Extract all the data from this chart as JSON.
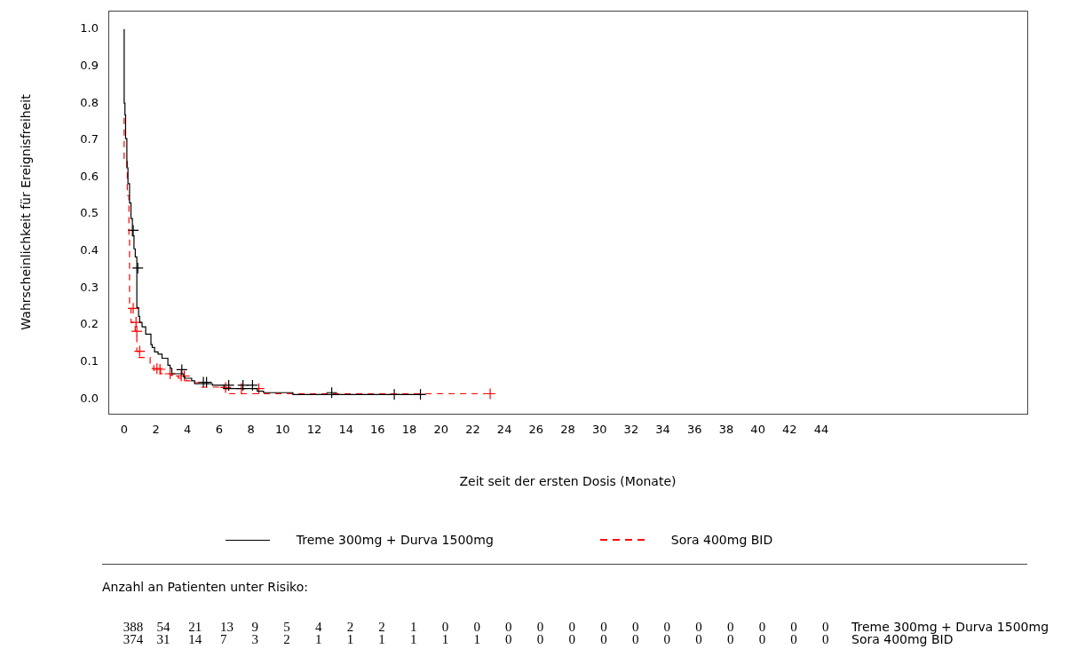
{
  "chart_data": {
    "type": "step",
    "xlabel": "Zeit seit der ersten Dosis (Monate)",
    "ylabel": "Wahrscheinlichkeit für Ereignisfreiheit",
    "xlim": [
      -1,
      57
    ],
    "xticks": [
      0,
      2,
      4,
      6,
      8,
      10,
      12,
      14,
      16,
      18,
      20,
      22,
      24,
      26,
      28,
      30,
      32,
      34,
      36,
      38,
      40,
      42,
      44
    ],
    "ylim": [
      -0.04,
      1.05
    ],
    "yticks": [
      {
        "value": 0,
        "label": "0.0"
      },
      {
        "value": 0.1,
        "label": "0.1"
      },
      {
        "value": 0.2,
        "label": "0.2"
      },
      {
        "value": 0.3,
        "label": "0.3"
      },
      {
        "value": 0.4,
        "label": "0.4"
      },
      {
        "value": 0.5,
        "label": "0.5"
      },
      {
        "value": 0.6,
        "label": "0.6"
      },
      {
        "value": 0.7,
        "label": "0.7"
      },
      {
        "value": 0.8,
        "label": "0.8"
      },
      {
        "value": 0.9,
        "label": "0.9"
      },
      {
        "value": 1,
        "label": "1.0"
      }
    ],
    "legend": "bottom",
    "series": [
      {
        "name": "Treme 300mg + Durva 1500mg",
        "color": "#000000",
        "line_style": "solid",
        "marker": "none",
        "x": [
          0,
          0.05,
          0.09,
          0.17,
          0.24,
          0.34,
          0.43,
          0.52,
          0.62,
          0.7,
          0.8,
          0.91,
          0.98,
          1.13,
          1.36,
          1.69,
          1.77,
          1.92,
          2.14,
          2.39,
          2.76,
          2.9,
          3.01,
          3.76,
          3.83,
          4.26,
          4.45,
          5.57,
          6.3,
          8.4,
          8.8,
          10.65,
          13.65,
          19.0
        ],
        "values": [
          1.0,
          0.8,
          0.768,
          0.704,
          0.625,
          0.582,
          0.53,
          0.488,
          0.441,
          0.406,
          0.384,
          0.247,
          0.223,
          0.207,
          0.195,
          0.175,
          0.147,
          0.139,
          0.127,
          0.121,
          0.11,
          0.091,
          0.083,
          0.068,
          0.06,
          0.056,
          0.049,
          0.041,
          0.037,
          0.028,
          0.021,
          0.017,
          0.012,
          0.012
        ]
      },
      {
        "name": "Sora 400mg BID",
        "color": "#ff0000",
        "line_style": "dashed",
        "marker": "none",
        "x": [
          0,
          0.2,
          0.3,
          0.34,
          0.43,
          0.7,
          0.8,
          0.9,
          1.64,
          1.87,
          2.3,
          2.9,
          3.42,
          3.9,
          4.32,
          4.82,
          6.03,
          6.6,
          11.45,
          23.1
        ],
        "values": [
          0.76,
          0.65,
          0.55,
          0.43,
          0.245,
          0.207,
          0.183,
          0.129,
          0.112,
          0.091,
          0.077,
          0.068,
          0.064,
          0.056,
          0.049,
          0.044,
          0.032,
          0.028,
          0.014,
          0.014
        ]
      },
      {
        "type": "scatter",
        "color": "#000000",
        "marker": "cross",
        "x": [
          0.57,
          0.86,
          3.64,
          5.0,
          5.2,
          6.6,
          7.5,
          8.1,
          13.1,
          17.05,
          18.7
        ],
        "values": [
          0.456,
          0.354,
          0.079,
          0.045,
          0.045,
          0.037,
          0.037,
          0.037,
          0.017,
          0.012,
          0.012
        ]
      },
      {
        "type": "scatter",
        "color": "#ff0000",
        "marker": "cross",
        "x": [
          0.57,
          0.75,
          0.8,
          0.98,
          2.07,
          2.26,
          2.9,
          3.6,
          3.8,
          6.4,
          7.4,
          8.5,
          23.1
        ],
        "values": [
          0.245,
          0.207,
          0.183,
          0.129,
          0.082,
          0.08,
          0.068,
          0.062,
          0.062,
          0.031,
          0.028,
          0.028,
          0.014
        ]
      }
    ],
    "annotations": [
      "Anzahl an Patienten unter Risiko:",
      "388 54 21 13 9 5 4 2 2 1 0 0 0 0 0 0 0 0 0 0 0 0 0",
      "Treme 300mg + Durva 1500mg",
      "374 31 14 7 3 2 1 1 1 1 1 1 0 0 0 0 0 0 0 0 0 0 0",
      "Sora 400mg BID"
    ]
  }
}
